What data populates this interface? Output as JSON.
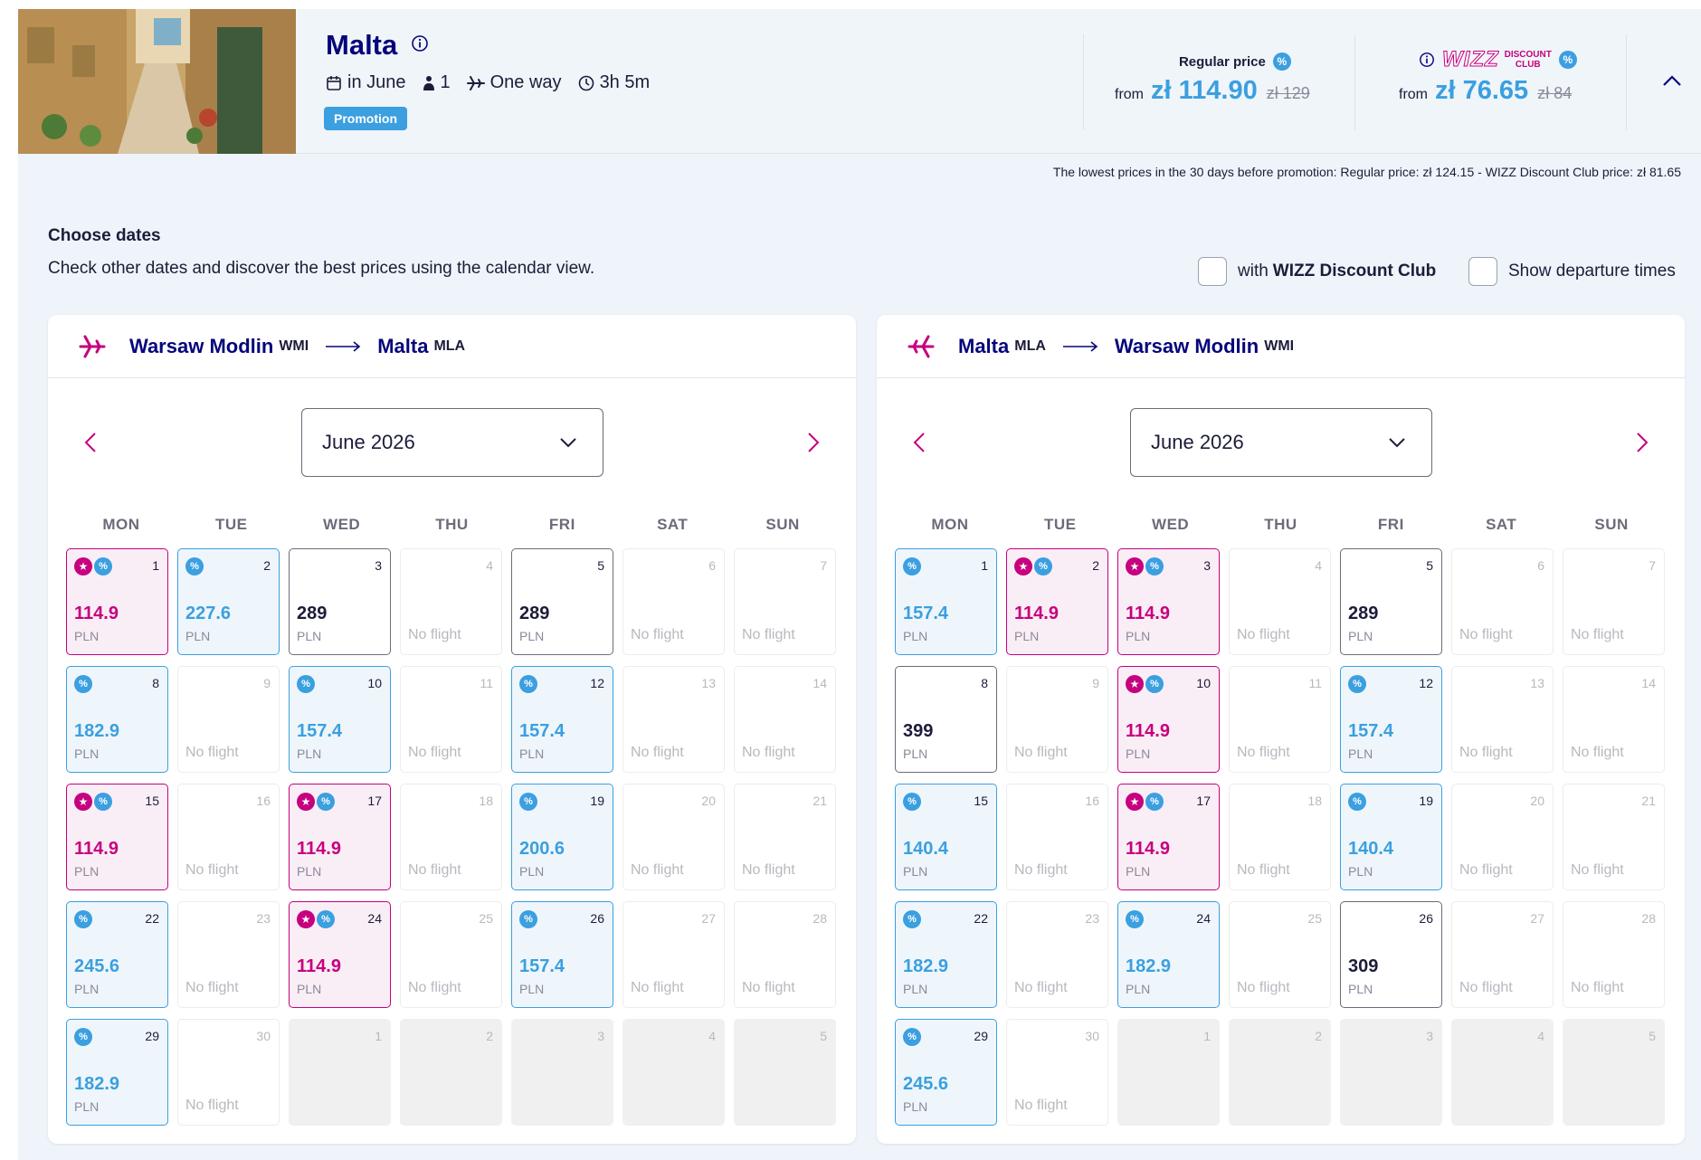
{
  "header": {
    "destination": "Malta",
    "when": "in June",
    "passengers": "1",
    "trip_type": "One way",
    "duration": "3h 5m",
    "promotion_badge": "Promotion",
    "regular": {
      "label": "Regular price",
      "badge": "%",
      "from": "from",
      "price": "zł 114.90",
      "old_price": "zł 129"
    },
    "club": {
      "logo_wizz": "WIZZ",
      "logo_discount": "DISCOUNT",
      "logo_club": "CLUB",
      "badge": "%",
      "from": "from",
      "price": "zł 76.65",
      "old_price": "zł 84"
    },
    "lowest_note": "The lowest prices in the 30 days before promotion:  Regular price: zł 124.15 - WIZZ Discount Club price: zł 81.65"
  },
  "choose": {
    "title": "Choose dates",
    "subtitle": "Check other dates and discover the best prices using the calendar view.",
    "toggle_club_prefix": "with",
    "toggle_club_bold": "WIZZ Discount Club",
    "toggle_times": "Show departure times"
  },
  "colors": {
    "navy": "#06067a",
    "blue": "#3b9fe0",
    "magenta": "#c6007e"
  },
  "weekdays": [
    "MON",
    "TUE",
    "WED",
    "THU",
    "FRI",
    "SAT",
    "SUN"
  ],
  "calendars": [
    {
      "from_city": "Warsaw Modlin",
      "from_code": "WMI",
      "to_city": "Malta",
      "to_code": "MLA",
      "month": "June 2026",
      "days": [
        {
          "day": "1",
          "type": "pink",
          "price": "114.9"
        },
        {
          "day": "2",
          "type": "blue",
          "price": "227.6"
        },
        {
          "day": "3",
          "type": "regular",
          "price": "289"
        },
        {
          "day": "4",
          "type": "none"
        },
        {
          "day": "5",
          "type": "regular",
          "price": "289"
        },
        {
          "day": "6",
          "type": "none"
        },
        {
          "day": "7",
          "type": "none"
        },
        {
          "day": "8",
          "type": "blue",
          "price": "182.9"
        },
        {
          "day": "9",
          "type": "none"
        },
        {
          "day": "10",
          "type": "blue",
          "price": "157.4"
        },
        {
          "day": "11",
          "type": "none"
        },
        {
          "day": "12",
          "type": "blue",
          "price": "157.4"
        },
        {
          "day": "13",
          "type": "none"
        },
        {
          "day": "14",
          "type": "none"
        },
        {
          "day": "15",
          "type": "pink",
          "price": "114.9"
        },
        {
          "day": "16",
          "type": "none"
        },
        {
          "day": "17",
          "type": "pink",
          "price": "114.9"
        },
        {
          "day": "18",
          "type": "none"
        },
        {
          "day": "19",
          "type": "blue",
          "price": "200.6"
        },
        {
          "day": "20",
          "type": "none"
        },
        {
          "day": "21",
          "type": "none"
        },
        {
          "day": "22",
          "type": "blue",
          "price": "245.6"
        },
        {
          "day": "23",
          "type": "none"
        },
        {
          "day": "24",
          "type": "pink",
          "price": "114.9"
        },
        {
          "day": "25",
          "type": "none"
        },
        {
          "day": "26",
          "type": "blue",
          "price": "157.4"
        },
        {
          "day": "27",
          "type": "none"
        },
        {
          "day": "28",
          "type": "none"
        },
        {
          "day": "29",
          "type": "blue",
          "price": "182.9"
        },
        {
          "day": "30",
          "type": "none"
        },
        {
          "day": "1",
          "type": "empty"
        },
        {
          "day": "2",
          "type": "empty"
        },
        {
          "day": "3",
          "type": "empty"
        },
        {
          "day": "4",
          "type": "empty"
        },
        {
          "day": "5",
          "type": "empty"
        }
      ]
    },
    {
      "from_city": "Malta",
      "from_code": "MLA",
      "to_city": "Warsaw Modlin",
      "to_code": "WMI",
      "month": "June 2026",
      "days": [
        {
          "day": "1",
          "type": "blue",
          "price": "157.4"
        },
        {
          "day": "2",
          "type": "pink",
          "price": "114.9"
        },
        {
          "day": "3",
          "type": "pink",
          "price": "114.9"
        },
        {
          "day": "4",
          "type": "none"
        },
        {
          "day": "5",
          "type": "regular",
          "price": "289"
        },
        {
          "day": "6",
          "type": "none"
        },
        {
          "day": "7",
          "type": "none"
        },
        {
          "day": "8",
          "type": "regular",
          "price": "399"
        },
        {
          "day": "9",
          "type": "none"
        },
        {
          "day": "10",
          "type": "pink",
          "price": "114.9"
        },
        {
          "day": "11",
          "type": "none"
        },
        {
          "day": "12",
          "type": "blue",
          "price": "157.4"
        },
        {
          "day": "13",
          "type": "none"
        },
        {
          "day": "14",
          "type": "none"
        },
        {
          "day": "15",
          "type": "blue",
          "price": "140.4"
        },
        {
          "day": "16",
          "type": "none"
        },
        {
          "day": "17",
          "type": "pink",
          "price": "114.9"
        },
        {
          "day": "18",
          "type": "none"
        },
        {
          "day": "19",
          "type": "blue",
          "price": "140.4"
        },
        {
          "day": "20",
          "type": "none"
        },
        {
          "day": "21",
          "type": "none"
        },
        {
          "day": "22",
          "type": "blue",
          "price": "182.9"
        },
        {
          "day": "23",
          "type": "none"
        },
        {
          "day": "24",
          "type": "blue",
          "price": "182.9"
        },
        {
          "day": "25",
          "type": "none"
        },
        {
          "day": "26",
          "type": "regular",
          "price": "309"
        },
        {
          "day": "27",
          "type": "none"
        },
        {
          "day": "28",
          "type": "none"
        },
        {
          "day": "29",
          "type": "blue",
          "price": "245.6"
        },
        {
          "day": "30",
          "type": "none"
        },
        {
          "day": "1",
          "type": "empty"
        },
        {
          "day": "2",
          "type": "empty"
        },
        {
          "day": "3",
          "type": "empty"
        },
        {
          "day": "4",
          "type": "empty"
        },
        {
          "day": "5",
          "type": "empty"
        }
      ]
    }
  ],
  "labels": {
    "currency": "PLN",
    "no_flight": "No flight"
  }
}
